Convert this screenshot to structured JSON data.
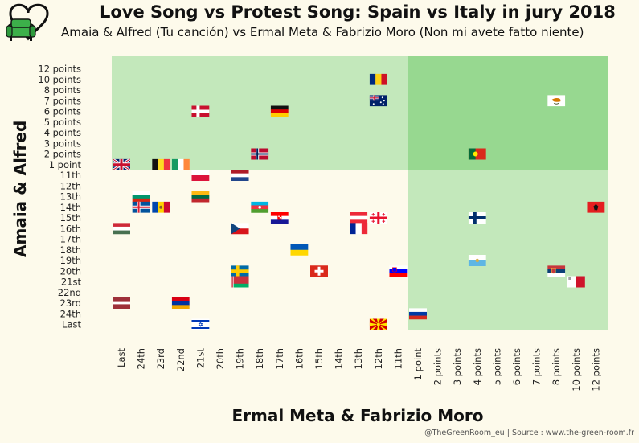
{
  "header": {
    "title": "Love Song vs Protest Song: Spain vs Italy in jury 2018",
    "subtitle": "Amaia & Alfred (Tu canción) vs Ermal Meta & Fabrizio Moro (Non mi avete fatto niente)",
    "credit": "@TheGreenRoom_eu | Source : www.the-green-room.fr"
  },
  "colors": {
    "background": "#fdfaeb",
    "zone_light": "#c3e8bb",
    "zone_dark": "#97d890",
    "logo": "#3cb04a"
  },
  "chart_data": {
    "type": "scatter",
    "title": "Love Song vs Protest Song: Spain vs Italy in jury 2018",
    "subtitle": "Amaia & Alfred (Tu canción) vs Ermal Meta & Fabrizio Moro (Non mi avete fatto niente)",
    "xlabel": "Ermal Meta & Fabrizio Moro",
    "ylabel": "Amaia & Alfred",
    "x_categories": [
      "Last",
      "24th",
      "23rd",
      "22nd",
      "21st",
      "20th",
      "19th",
      "18th",
      "17th",
      "16th",
      "15th",
      "14th",
      "13th",
      "12th",
      "11th",
      "1 point",
      "2 points",
      "3 points",
      "4 points",
      "5 points",
      "6 points",
      "7 points",
      "8 points",
      "10 points",
      "12 points"
    ],
    "y_categories": [
      "Last",
      "24th",
      "23rd",
      "22nd",
      "21st",
      "20th",
      "19th",
      "18th",
      "17th",
      "16th",
      "15th",
      "14th",
      "13th",
      "12th",
      "11th",
      "1 point",
      "2 points",
      "3 points",
      "4 points",
      "5 points",
      "6 points",
      "7 points",
      "8 points",
      "10 points",
      "12 points"
    ],
    "points": [
      {
        "country": "United Kingdom",
        "x": "Last",
        "y": "1 point"
      },
      {
        "country": "Belgium",
        "x": "23rd",
        "y": "1 point"
      },
      {
        "country": "Ireland",
        "x": "22nd",
        "y": "1 point"
      },
      {
        "country": "Denmark",
        "x": "21st",
        "y": "6 points"
      },
      {
        "country": "Germany",
        "x": "17th",
        "y": "6 points"
      },
      {
        "country": "Norway",
        "x": "18th",
        "y": "2 points"
      },
      {
        "country": "Romania",
        "x": "12th",
        "y": "10 points"
      },
      {
        "country": "Australia",
        "x": "12th",
        "y": "7 points"
      },
      {
        "country": "Cyprus",
        "x": "8 points",
        "y": "7 points"
      },
      {
        "country": "Portugal",
        "x": "4 points",
        "y": "2 points"
      },
      {
        "country": "Poland",
        "x": "21st",
        "y": "11th"
      },
      {
        "country": "Netherlands",
        "x": "19th",
        "y": "11th"
      },
      {
        "country": "Lithuania",
        "x": "21st",
        "y": "13th"
      },
      {
        "country": "Bulgaria",
        "x": "24th",
        "y": "13th"
      },
      {
        "country": "Iceland",
        "x": "24th",
        "y": "14th"
      },
      {
        "country": "Moldova",
        "x": "23rd",
        "y": "14th"
      },
      {
        "country": "Azerbaijan",
        "x": "18th",
        "y": "14th"
      },
      {
        "country": "Croatia",
        "x": "17th",
        "y": "15th"
      },
      {
        "country": "Austria",
        "x": "13th",
        "y": "15th"
      },
      {
        "country": "Georgia",
        "x": "12th",
        "y": "15th"
      },
      {
        "country": "Finland",
        "x": "4 points",
        "y": "15th"
      },
      {
        "country": "Albania",
        "x": "12 points",
        "y": "14th"
      },
      {
        "country": "Hungary",
        "x": "Last",
        "y": "16th"
      },
      {
        "country": "Czech Republic",
        "x": "19th",
        "y": "16th"
      },
      {
        "country": "France",
        "x": "13th",
        "y": "16th"
      },
      {
        "country": "Ukraine",
        "x": "16th",
        "y": "18th"
      },
      {
        "country": "San Marino",
        "x": "4 points",
        "y": "19th"
      },
      {
        "country": "Sweden",
        "x": "19th",
        "y": "20th"
      },
      {
        "country": "Switzerland",
        "x": "15th",
        "y": "20th"
      },
      {
        "country": "Slovenia",
        "x": "11th",
        "y": "20th"
      },
      {
        "country": "Serbia",
        "x": "8 points",
        "y": "20th"
      },
      {
        "country": "Belarus",
        "x": "19th",
        "y": "21st"
      },
      {
        "country": "Malta",
        "x": "10 points",
        "y": "21st"
      },
      {
        "country": "Latvia",
        "x": "Last",
        "y": "23rd"
      },
      {
        "country": "Armenia",
        "x": "22nd",
        "y": "23rd"
      },
      {
        "country": "Russia",
        "x": "1 point",
        "y": "24th"
      },
      {
        "country": "Israel",
        "x": "21st",
        "y": "Last"
      },
      {
        "country": "Macedonia",
        "x": "12th",
        "y": "Last"
      }
    ]
  }
}
